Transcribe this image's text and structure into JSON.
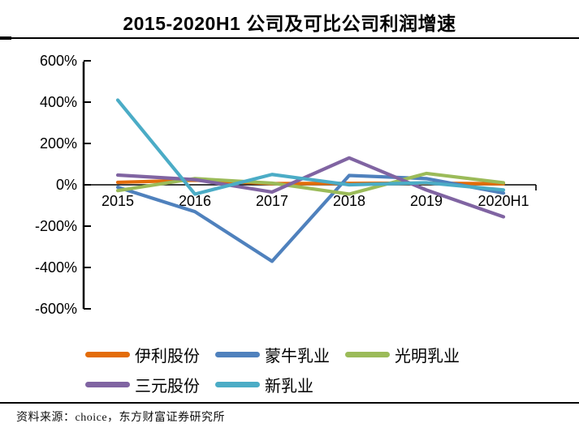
{
  "title": "2015-2020H1 公司及可比公司利润增速",
  "source": "资料来源：choice，东方财富证券研究所",
  "chart_data": {
    "type": "line",
    "title": "2015-2020H1 公司及可比公司利润增速",
    "categories": [
      "2015",
      "2016",
      "2017",
      "2018",
      "2019",
      "2020H1"
    ],
    "series": [
      {
        "name": "伊利股份",
        "color": "#E36C09",
        "values": [
          12,
          22,
          6,
          7,
          8,
          5
        ]
      },
      {
        "name": "蒙牛乳业",
        "color": "#4F81BD",
        "values": [
          -12,
          -130,
          -370,
          45,
          30,
          -40
        ]
      },
      {
        "name": "光明乳业",
        "color": "#9BBB59",
        "values": [
          -28,
          30,
          8,
          -45,
          55,
          10
        ]
      },
      {
        "name": "三元股份",
        "color": "#8064A2",
        "values": [
          47,
          25,
          -35,
          130,
          -25,
          -155
        ]
      },
      {
        "name": "新乳业",
        "color": "#4BACC6",
        "values": [
          410,
          -45,
          50,
          0,
          10,
          -25
        ]
      }
    ],
    "ylim": [
      -600,
      600
    ],
    "ytick_values": [
      600,
      400,
      200,
      0,
      -200,
      -400,
      -600
    ],
    "ytick_labels": [
      "600%",
      "400%",
      "200%",
      "0%",
      "-200%",
      "-400%",
      "-600%"
    ],
    "xlabel": "",
    "ylabel": "",
    "grid": "off",
    "legend_position": "bottom",
    "axis_color": "#000000"
  },
  "legend_rows": [
    [
      {
        "name": "伊利股份",
        "color": "#E36C09"
      },
      {
        "name": "蒙牛乳业",
        "color": "#4F81BD"
      },
      {
        "name": "光明乳业",
        "color": "#9BBB59"
      }
    ],
    [
      {
        "name": "三元股份",
        "color": "#8064A2"
      },
      {
        "name": "新乳业",
        "color": "#4BACC6"
      }
    ]
  ]
}
